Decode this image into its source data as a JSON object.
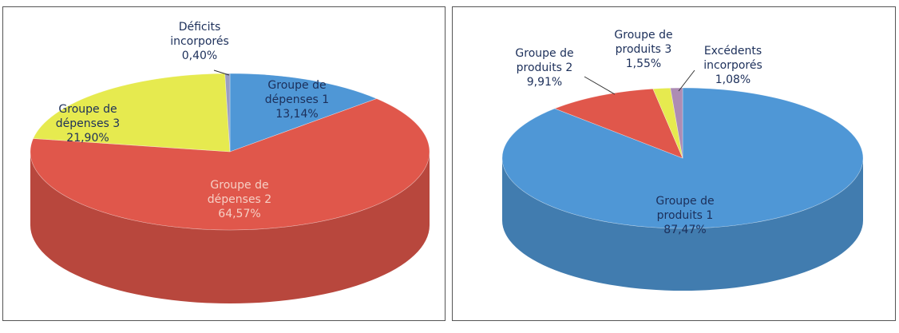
{
  "chart_data": [
    {
      "type": "pie",
      "categories": [
        "Groupe de dépenses 1",
        "Groupe de dépenses 2",
        "Groupe de dépenses 3",
        "Déficits incorporés"
      ],
      "values": [
        13.14,
        64.57,
        21.9,
        0.4
      ],
      "value_labels": [
        "13,14%",
        "64,57%",
        "21,90%",
        "0,40%"
      ],
      "colors": [
        "#4f97d6",
        "#e0574b",
        "#e6ea4f",
        "#9a9ec4"
      ]
    },
    {
      "type": "pie",
      "categories": [
        "Groupe de produits 1",
        "Groupe de produits 2",
        "Groupe de produits 3",
        "Excédents incorporés"
      ],
      "values": [
        87.47,
        9.91,
        1.55,
        1.08
      ],
      "value_labels": [
        "87,47%",
        "9,91%",
        "1,55%",
        "1,08%"
      ],
      "colors": [
        "#4f97d6",
        "#e0574b",
        "#e6ea4f",
        "#ad8cb4"
      ]
    }
  ]
}
